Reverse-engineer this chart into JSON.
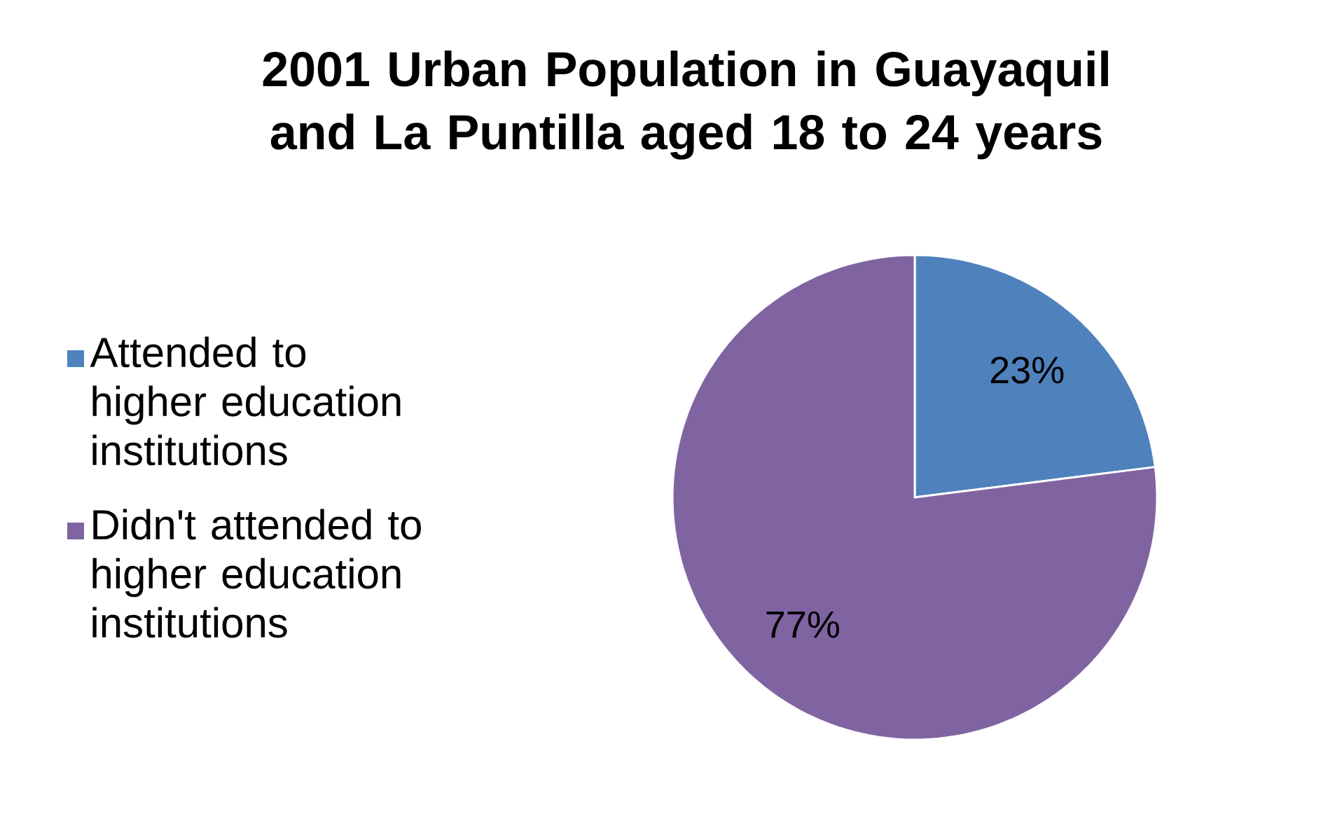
{
  "chart_data": {
    "type": "pie",
    "title": "2001 Urban Population in Guayaquil and La Puntilla aged 18 to 24 years",
    "categories": [
      "Attended to higher education institutions",
      "Didn't attended to higher education institutions"
    ],
    "values": [
      23,
      77
    ],
    "colors": [
      "#4f81bd",
      "#8064a2"
    ],
    "value_labels": [
      "23%",
      "77%"
    ],
    "legend": "left"
  }
}
